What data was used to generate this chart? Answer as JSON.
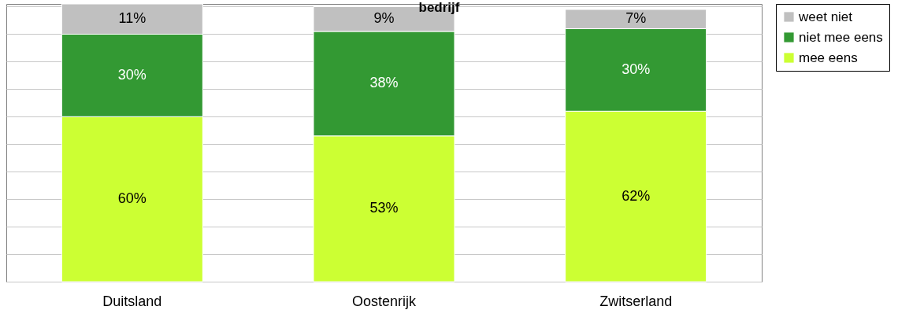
{
  "chart_data": {
    "type": "bar",
    "title": "bedrijf",
    "stacked": true,
    "categories": [
      "Duitsland",
      "Oostenrijk",
      "Zwitserland"
    ],
    "series": [
      {
        "name": "mee eens",
        "color": "#ccff33",
        "values": [
          60,
          53,
          62
        ],
        "value_labels": [
          "60%",
          "53%",
          "62%"
        ]
      },
      {
        "name": "niet mee eens",
        "color": "#339933",
        "values": [
          30,
          38,
          30
        ],
        "value_labels": [
          "30%",
          "38%",
          "30%"
        ]
      },
      {
        "name": "weet niet",
        "color": "#c0c0c0",
        "values": [
          11,
          9,
          7
        ],
        "value_labels": [
          "11%",
          "9%",
          "7%"
        ]
      }
    ],
    "ylim": [
      0,
      101
    ],
    "grid": "y",
    "legend": "right",
    "tick_labels": "x"
  }
}
